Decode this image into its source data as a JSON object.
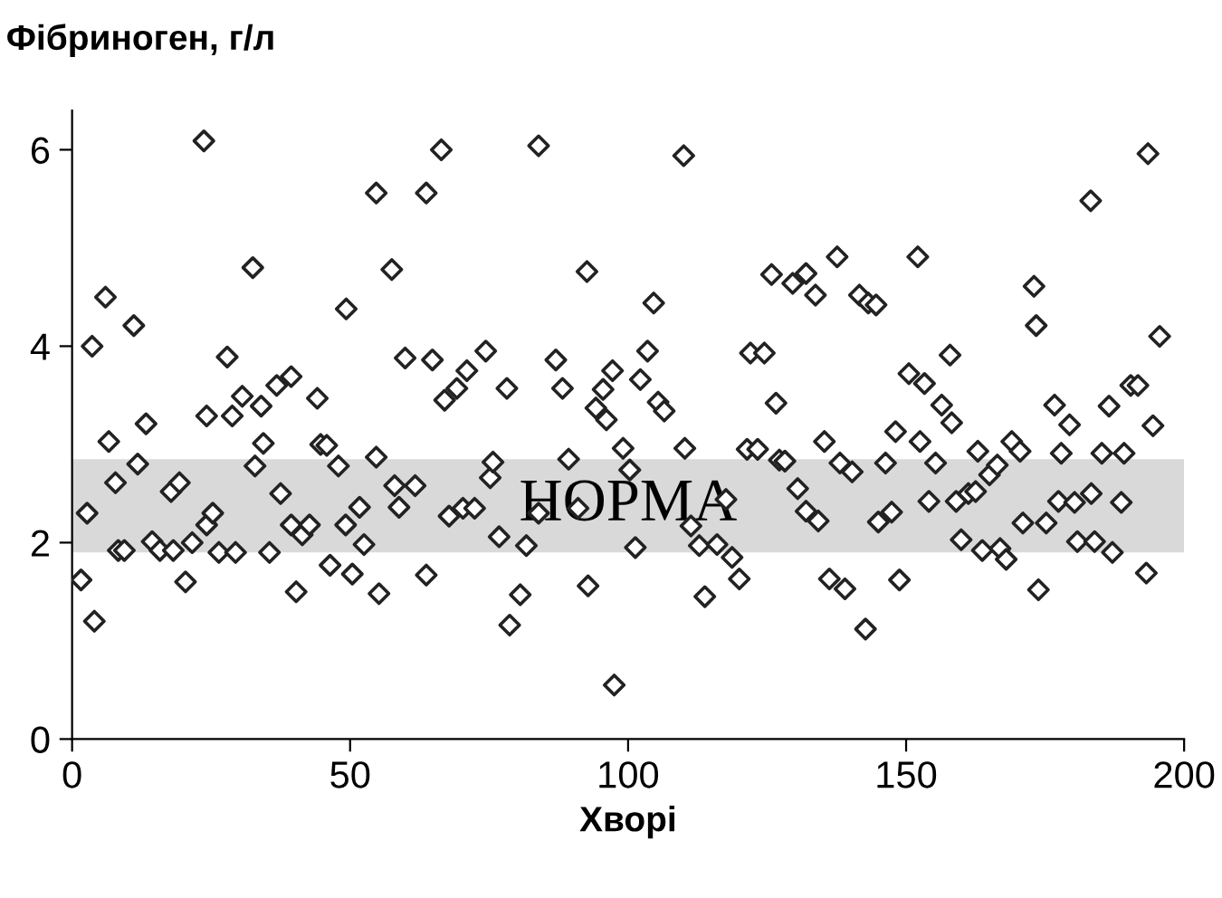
{
  "chart_data": {
    "type": "scatter",
    "xlabel": "Хворі",
    "ylabel": "Фібриноген, г/л",
    "xlim": [
      0,
      200
    ],
    "xticks": [
      0,
      50,
      100,
      150,
      200
    ],
    "ylim": [
      0,
      6.4
    ],
    "yticks": [
      0,
      2,
      4,
      6
    ],
    "grid": false,
    "legend": false,
    "marker": "diamond",
    "bands": [
      {
        "axis": "y",
        "from": 1.9,
        "to": 2.85,
        "label": "НОРМА",
        "color": "#d9d9d9"
      }
    ],
    "series": [
      {
        "color": "#222222",
        "x": [
          1.6,
          2.7,
          3.6,
          4.0,
          6.0,
          6.6,
          7.8,
          8.3,
          9.4,
          11.1,
          11.8,
          13.3,
          14.4,
          15.8,
          17.8,
          18.2,
          19.3,
          20.4,
          21.6,
          23.7,
          24.2,
          24.2,
          25.3,
          26.4,
          27.9,
          28.8,
          29.4,
          30.6,
          32.5,
          32.9,
          34.0,
          34.4,
          35.5,
          36.8,
          37.5,
          39.4,
          39.4,
          40.3,
          41.4,
          42.7,
          44.1,
          44.7,
          45.8,
          46.4,
          47.9,
          49.3,
          49.2,
          50.4,
          51.7,
          52.5,
          54.7,
          54.7,
          55.2,
          57.5,
          58.0,
          58.8,
          59.9,
          61.7,
          63.7,
          63.7,
          64.8,
          66.4,
          67.0,
          69.2,
          67.8,
          70.3,
          71.0,
          72.4,
          74.4,
          75.2,
          75.7,
          76.8,
          78.2,
          78.7,
          80.6,
          81.7,
          83.9,
          83.9,
          87.0,
          88.2,
          89.3,
          91.0,
          92.6,
          92.8,
          94.2,
          95.5,
          96.1,
          97.2,
          97.5,
          99.1,
          100.3,
          101.3,
          102.2,
          103.5,
          104.6,
          105.4,
          106.5,
          110.0,
          110.2,
          111.3,
          112.8,
          113.8,
          116.0,
          117.6,
          118.7,
          120.0,
          121.4,
          123.3,
          122.0,
          124.5,
          125.8,
          126.6,
          127.2,
          128.2,
          129.6,
          130.5,
          132.0,
          132.0,
          133.7,
          134.2,
          135.3,
          136.2,
          137.6,
          138.1,
          139.0,
          140.3,
          141.6,
          142.7,
          143.2,
          144.6,
          145.0,
          146.3,
          147.4,
          148.1,
          148.8,
          150.5,
          152.1,
          152.5,
          153.3,
          154.1,
          155.3,
          156.4,
          157.9,
          158.2,
          159.0,
          159.9,
          161.2,
          162.5,
          162.9,
          163.7,
          165.0,
          166.4,
          166.9,
          168.0,
          169.0,
          170.5,
          171.0,
          173.0,
          173.4,
          173.8,
          175.2,
          176.7,
          177.9,
          177.4,
          179.4,
          180.3,
          180.8,
          183.2,
          183.3,
          183.9,
          185.2,
          186.5,
          187.1,
          188.7,
          189.2,
          190.4,
          191.7,
          193.2,
          193.5,
          194.4,
          195.6
        ],
        "values": [
          1.62,
          2.3,
          4.0,
          1.2,
          4.5,
          3.03,
          2.61,
          1.92,
          1.92,
          4.21,
          2.8,
          3.21,
          2.01,
          1.92,
          2.52,
          1.92,
          2.61,
          1.6,
          2.0,
          6.09,
          3.29,
          2.18,
          2.3,
          1.9,
          3.89,
          3.29,
          1.9,
          3.49,
          4.8,
          2.78,
          3.39,
          3.01,
          1.9,
          3.6,
          2.5,
          3.69,
          2.18,
          1.5,
          2.08,
          2.18,
          3.47,
          3.0,
          2.99,
          1.77,
          2.78,
          4.38,
          2.18,
          1.68,
          2.36,
          1.98,
          5.56,
          2.87,
          1.48,
          4.78,
          2.58,
          2.36,
          3.88,
          2.58,
          5.56,
          1.67,
          3.86,
          6.0,
          3.45,
          3.57,
          2.27,
          2.35,
          3.75,
          2.35,
          3.95,
          2.66,
          2.82,
          2.06,
          3.57,
          1.16,
          1.47,
          1.97,
          6.04,
          2.3,
          3.86,
          3.57,
          2.85,
          2.35,
          4.76,
          1.56,
          3.37,
          3.56,
          3.25,
          3.75,
          0.55,
          2.96,
          2.74,
          1.95,
          3.66,
          3.95,
          4.44,
          3.43,
          3.34,
          5.94,
          2.96,
          2.17,
          1.97,
          1.45,
          1.98,
          2.44,
          1.85,
          1.63,
          2.95,
          2.95,
          3.93,
          3.93,
          4.73,
          3.42,
          2.84,
          2.83,
          4.64,
          2.55,
          4.74,
          2.32,
          4.52,
          2.22,
          3.03,
          1.63,
          4.91,
          2.81,
          1.53,
          2.72,
          4.52,
          1.12,
          4.44,
          4.42,
          2.21,
          2.81,
          2.31,
          3.13,
          1.62,
          3.72,
          4.91,
          3.03,
          3.62,
          2.42,
          2.81,
          3.4,
          3.91,
          3.22,
          2.42,
          2.03,
          2.5,
          2.52,
          2.93,
          1.92,
          2.69,
          2.79,
          1.94,
          1.83,
          3.03,
          2.93,
          2.2,
          4.61,
          4.21,
          1.52,
          2.2,
          3.4,
          2.91,
          2.42,
          3.2,
          2.41,
          2.01,
          5.48,
          2.5,
          2.01,
          2.91,
          3.39,
          1.9,
          2.41,
          2.91,
          3.6,
          3.6,
          1.69,
          5.96,
          3.19,
          4.1
        ]
      }
    ]
  }
}
